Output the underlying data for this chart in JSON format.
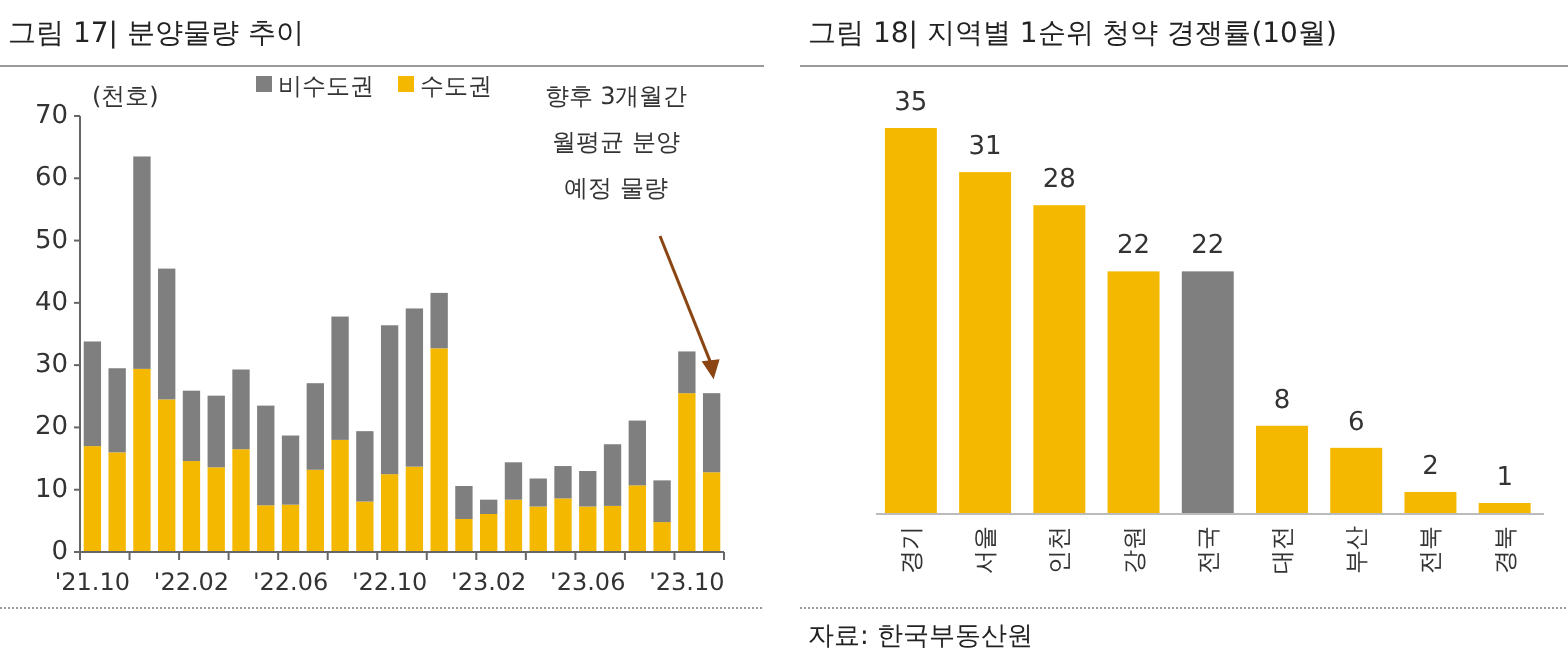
{
  "chart_data": [
    {
      "type": "bar",
      "title": "그림 17| 분양물량 추이",
      "ylabel": "(천호)",
      "stacked": true,
      "legend": "top",
      "grid": false,
      "categories": [
        "'21.10",
        null,
        null,
        null,
        "'22.02",
        null,
        null,
        null,
        "'22.06",
        null,
        null,
        null,
        "'22.10",
        null,
        null,
        null,
        "'23.02",
        null,
        null,
        null,
        "'23.06",
        null,
        null,
        null,
        "'23.10",
        null
      ],
      "series": [
        {
          "name": "수도권",
          "color": "#f5b800",
          "values": [
            17.0,
            16.0,
            29.4,
            24.5,
            14.6,
            13.6,
            16.5,
            7.5,
            7.6,
            13.2,
            18.0,
            8.1,
            12.5,
            13.7,
            32.7,
            5.3,
            6.1,
            8.4,
            7.3,
            8.6,
            7.3,
            7.4,
            10.7,
            4.8,
            25.5,
            12.8
          ]
        },
        {
          "name": "비수도권",
          "color": "#7f7f7f",
          "values": [
            16.8,
            13.5,
            34.1,
            21.0,
            11.3,
            11.5,
            12.8,
            16.0,
            11.1,
            13.9,
            19.8,
            11.3,
            23.9,
            25.4,
            8.9,
            5.3,
            2.3,
            6.0,
            4.5,
            5.2,
            5.7,
            9.9,
            10.4,
            6.7,
            6.7,
            12.7
          ]
        }
      ],
      "ylim": [
        0,
        70
      ],
      "yticks": [
        0,
        10,
        20,
        30,
        40,
        50,
        60,
        70
      ],
      "annotations": [
        "향후 3개월간\n월평균 분양\n예정 물량"
      ]
    },
    {
      "type": "bar",
      "title": "그림 18| 지역별 1순위 청약 경쟁률(10월)",
      "data_labels": true,
      "categories": [
        "경기",
        "서울",
        "인천",
        "강원",
        "전국",
        "대전",
        "부산",
        "전북",
        "경북"
      ],
      "values": [
        35,
        31,
        28,
        22,
        22,
        8,
        6,
        2,
        1
      ],
      "colors": [
        "#f5b800",
        "#f5b800",
        "#f5b800",
        "#f5b800",
        "#7f7f7f",
        "#f5b800",
        "#f5b800",
        "#f5b800",
        "#f5b800"
      ],
      "annotations": [
        "자료: 한국부동산원"
      ]
    }
  ]
}
